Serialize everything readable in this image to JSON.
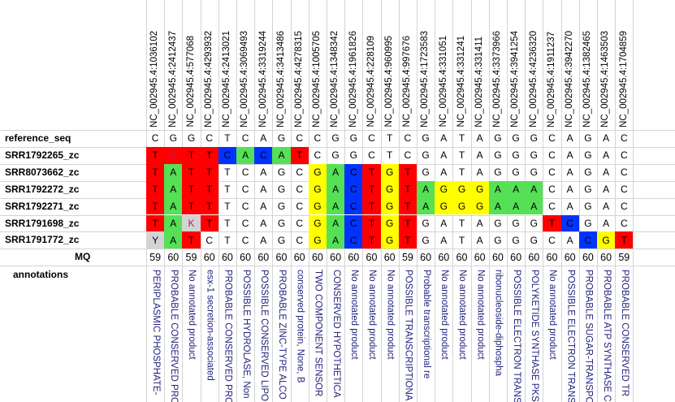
{
  "columns": [
    "NC_002945.4:1036102",
    "NC_002945.4:2412437",
    "NC_002945.4:577068",
    "NC_002945.4:4293932",
    "NC_002945.4:2413021",
    "NC_002945.4:3069493",
    "NC_002945.4:3319244",
    "NC_002945.4:3413486",
    "NC_002945.4:4278315",
    "NC_002945.4:1005705",
    "NC_002945.4:1348342",
    "NC_002945.4:1961826",
    "NC_002945.4:228109",
    "NC_002945.4:960995",
    "NC_002945.4:997676",
    "NC_002945.4:1723583",
    "NC_002945.4:331051",
    "NC_002945.4:331241",
    "NC_002945.4:331411",
    "NC_002945.4:3373966",
    "NC_002945.4:3941254",
    "NC_002945.4:4236320",
    "NC_002945.4:1911237",
    "NC_002945.4:3942270",
    "NC_002945.4:1382465",
    "NC_002945.4:1463503",
    "NC_002945.4:1704859"
  ],
  "reference": {
    "label": "reference_seq",
    "bases": [
      "C",
      "G",
      "G",
      "C",
      "T",
      "C",
      "A",
      "G",
      "C",
      "C",
      "G",
      "G",
      "C",
      "T",
      "C",
      "G",
      "A",
      "T",
      "A",
      "G",
      "G",
      "G",
      "C",
      "A",
      "G",
      "A",
      "C"
    ]
  },
  "samples": [
    {
      "label": "SRR1792265_zc",
      "bases": [
        "T",
        "R",
        "T",
        "T",
        "C",
        "A",
        "C",
        "A",
        "T",
        "C",
        "G",
        "G",
        "C",
        "T",
        "C",
        "G",
        "A",
        "T",
        "A",
        "G",
        "G",
        "G",
        "C",
        "A",
        "G",
        "A",
        "C"
      ],
      "colors": [
        "#ff0000",
        "#ff0000",
        "#ff0000",
        "#ff0000",
        "#0033ff",
        "#55e055",
        "#0033ff",
        "#55e055",
        "#ff0000",
        "",
        "",
        "",
        "",
        "",
        "",
        "",
        "",
        "",
        "",
        "",
        "",
        "",
        "",
        "",
        "",
        "",
        ""
      ]
    },
    {
      "label": "SRR8073662_zc",
      "bases": [
        "T",
        "A",
        "T",
        "T",
        "T",
        "C",
        "A",
        "G",
        "C",
        "G",
        "A",
        "C",
        "T",
        "G",
        "T",
        "G",
        "A",
        "T",
        "A",
        "G",
        "G",
        "G",
        "C",
        "A",
        "G",
        "A",
        "C"
      ],
      "colors": [
        "#ff0000",
        "#55e055",
        "#ff0000",
        "#ff0000",
        "",
        "",
        "",
        "",
        "",
        "#ffff00",
        "#55e055",
        "#0033ff",
        "#ff0000",
        "#ffff00",
        "#ff0000",
        "",
        "",
        "",
        "",
        "",
        "",
        "",
        "",
        "",
        "",
        "",
        ""
      ]
    },
    {
      "label": "SRR1792272_zc",
      "bases": [
        "T",
        "A",
        "T",
        "T",
        "T",
        "C",
        "A",
        "G",
        "C",
        "G",
        "A",
        "C",
        "T",
        "G",
        "T",
        "A",
        "G",
        "G",
        "G",
        "A",
        "A",
        "A",
        "C",
        "A",
        "G",
        "A",
        "C"
      ],
      "colors": [
        "#ff0000",
        "#55e055",
        "#ff0000",
        "#ff0000",
        "",
        "",
        "",
        "",
        "",
        "#ffff00",
        "#55e055",
        "#0033ff",
        "#ff0000",
        "#ffff00",
        "#ff0000",
        "#55e055",
        "#ffff00",
        "#ffff00",
        "#ffff00",
        "#55e055",
        "#55e055",
        "#55e055",
        "",
        "",
        "",
        "",
        ""
      ]
    },
    {
      "label": "SRR1792271_zc",
      "bases": [
        "T",
        "A",
        "T",
        "T",
        "T",
        "C",
        "A",
        "G",
        "C",
        "G",
        "A",
        "C",
        "T",
        "G",
        "T",
        "A",
        "G",
        "G",
        "G",
        "A",
        "A",
        "A",
        "C",
        "A",
        "G",
        "A",
        "C"
      ],
      "colors": [
        "#ff0000",
        "#55e055",
        "#ff0000",
        "#ff0000",
        "",
        "",
        "",
        "",
        "",
        "#ffff00",
        "#55e055",
        "#0033ff",
        "#ff0000",
        "#ffff00",
        "#ff0000",
        "#55e055",
        "#ffff00",
        "#ffff00",
        "#ffff00",
        "#55e055",
        "#55e055",
        "#55e055",
        "",
        "",
        "",
        "",
        ""
      ]
    },
    {
      "label": "SRR1791698_zc",
      "bases": [
        "T",
        "A",
        "K",
        "T",
        "T",
        "C",
        "A",
        "G",
        "C",
        "G",
        "A",
        "C",
        "T",
        "G",
        "T",
        "G",
        "A",
        "T",
        "A",
        "G",
        "G",
        "G",
        "T",
        "C",
        "G",
        "A",
        "C"
      ],
      "colors": [
        "#ff0000",
        "#55e055",
        "#d3d3d3",
        "#ff0000",
        "",
        "",
        "",
        "",
        "",
        "#ffff00",
        "#55e055",
        "#0033ff",
        "#ff0000",
        "#ffff00",
        "#ff0000",
        "",
        "",
        "",
        "",
        "",
        "",
        "",
        "#ff0000",
        "#0033ff",
        "",
        "",
        ""
      ]
    },
    {
      "label": "SRR1791772_zc",
      "bases": [
        "Y",
        "A",
        "T",
        "C",
        "T",
        "C",
        "A",
        "G",
        "C",
        "G",
        "A",
        "C",
        "T",
        "G",
        "T",
        "G",
        "A",
        "T",
        "A",
        "G",
        "G",
        "G",
        "C",
        "A",
        "C",
        "G",
        "T"
      ],
      "colors": [
        "#d3d3d3",
        "#55e055",
        "#ff0000",
        "",
        "",
        "",
        "",
        "",
        "",
        "#ffff00",
        "#55e055",
        "#0033ff",
        "#ff0000",
        "#ffff00",
        "#ff0000",
        "",
        "",
        "",
        "",
        "",
        "",
        "",
        "",
        "",
        "#0033ff",
        "#ffff00",
        "#ff0000"
      ]
    }
  ],
  "mq": {
    "label": "MQ",
    "values": [
      "59",
      "60",
      "59",
      "60",
      "60",
      "60",
      "60",
      "60",
      "60",
      "60",
      "60",
      "60",
      "60",
      "60",
      "59",
      "60",
      "60",
      "60",
      "60",
      "60",
      "60",
      "60",
      "60",
      "60",
      "60",
      "60",
      "59"
    ]
  },
  "annotations": {
    "label": "annotations",
    "values": [
      "PERIPLASMIC PHOSPHATE-",
      "PROBABLE CONSERVED PRO",
      "No annotated product",
      "esx-1 secretion-associated",
      "PROBABLE CONSERVED PRO",
      "POSSIBLE HYDROLASE, Non",
      "POSSIBLE CONSERVED LIPO",
      "PROBABLE ZINC-TYPE ALCO",
      "conserved protein, None, B",
      "TWO COMPONENT SENSOR",
      "CONSERVED HYPOTHETICA",
      "No annotated product",
      "No annotated product",
      "No annotated product",
      "POSSIBLE TRANSCRIPTIONA",
      "Probable transcriptional re",
      "No annotated product",
      "No annotated product",
      "No annotated product",
      "ribonucleoside-diphospha",
      "POSSIBLE ELECTRON TRANS",
      "POLYKETIDE SYNTHASE PKS",
      "No annotated product",
      "POSSIBLE ELECTRON TRANS",
      "PROBABLE SUGAR-TRANSPO",
      "PROBABLE ATP SYNTHASE C",
      "PROBABLE CONSERVED TR"
    ]
  }
}
